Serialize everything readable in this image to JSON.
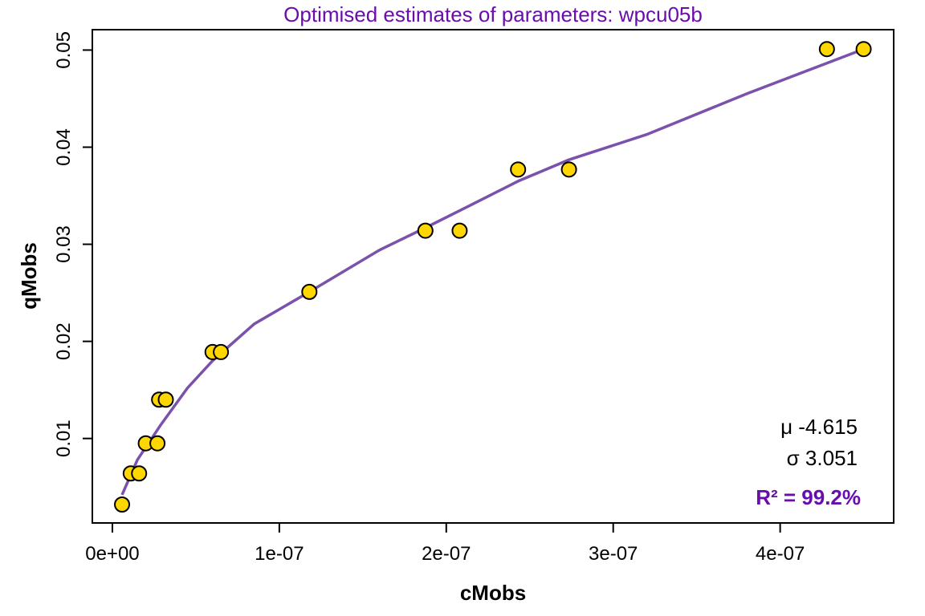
{
  "chart_data": {
    "type": "scatter",
    "title": "Optimised estimates of parameters: wpcu05b",
    "xlabel": "cMobs",
    "ylabel": "qMobs",
    "xlim": [
      -1.2e-08,
      4.68e-07
    ],
    "ylim": [
      0.0013,
      0.0521
    ],
    "x_ticks": [
      0,
      1e-07,
      2e-07,
      3e-07,
      4e-07
    ],
    "x_tick_labels": [
      "0e+00",
      "1e-07",
      "2e-07",
      "3e-07",
      "4e-07"
    ],
    "y_ticks": [
      0.01,
      0.02,
      0.03,
      0.04,
      0.05
    ],
    "y_tick_labels": [
      "0.01",
      "0.02",
      "0.03",
      "0.04",
      "0.05"
    ],
    "grid": false,
    "points": {
      "x": [
        5.8e-09,
        1.1e-08,
        1.6e-08,
        2e-08,
        2.7e-08,
        2.8e-08,
        3.2e-08,
        6e-08,
        6.5e-08,
        1.18e-07,
        1.875e-07,
        2.08e-07,
        2.43e-07,
        2.735e-07,
        4.28e-07,
        4.5e-07
      ],
      "y": [
        0.0032,
        0.0064,
        0.0064,
        0.0095,
        0.0095,
        0.014,
        0.014,
        0.0189,
        0.0189,
        0.0251,
        0.0314,
        0.0314,
        0.0377,
        0.0377,
        0.0501,
        0.0501
      ]
    },
    "fit_curve": {
      "x": [
        5.8e-09,
        1.5e-08,
        2.9e-08,
        4.5e-08,
        6e-08,
        8.5e-08,
        1.18e-07,
        1.6e-07,
        1.875e-07,
        2.2e-07,
        2.43e-07,
        2.735e-07,
        3.2e-07,
        3.8e-07,
        4.5e-07
      ],
      "y": [
        0.0042,
        0.0078,
        0.0114,
        0.0152,
        0.018,
        0.0218,
        0.0251,
        0.0294,
        0.0317,
        0.0345,
        0.0365,
        0.0387,
        0.0413,
        0.0455,
        0.0501
      ]
    },
    "annotations": {
      "mu": "μ -4.615",
      "sigma": "σ  3.051",
      "r2": "R² = 99.2%"
    },
    "colors": {
      "points_fill": "#FFD700",
      "points_stroke": "#000000",
      "curve": "#7B52AB",
      "title": "#6A0DAD",
      "r2": "#6A0DAD"
    }
  }
}
